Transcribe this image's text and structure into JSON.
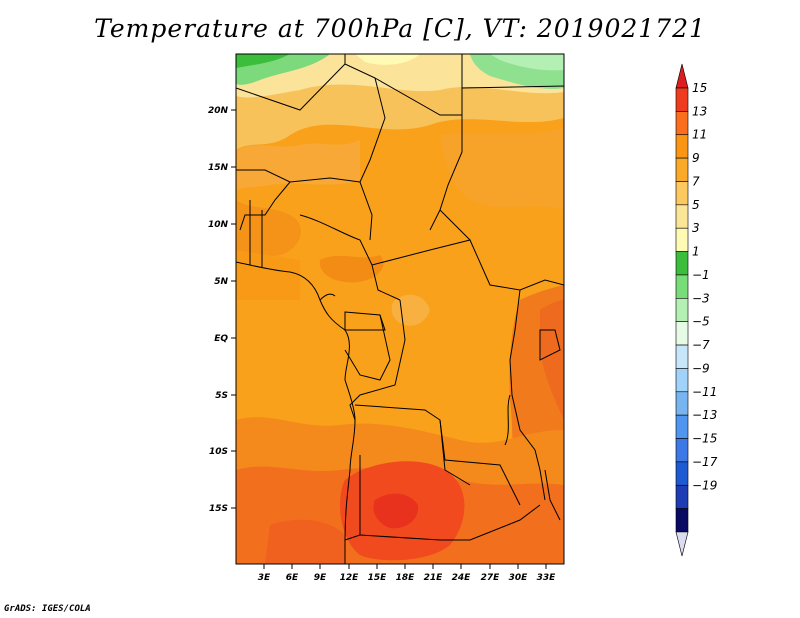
{
  "title": "Temperature at 700hPa [C], VT: 2019021721",
  "credit": "GrADS: IGES/COLA",
  "map": {
    "lat_labels": [
      "20N",
      "15N",
      "10N",
      "5N",
      "EQ",
      "5S",
      "10S",
      "15S"
    ],
    "lon_labels": [
      "3E",
      "6E",
      "9E",
      "12E",
      "15E",
      "18E",
      "21E",
      "24E",
      "27E",
      "30E",
      "33E"
    ]
  },
  "colorbar": {
    "labels": [
      "15",
      "13",
      "11",
      "9",
      "7",
      "5",
      "3",
      "1",
      "−1",
      "−3",
      "−5",
      "−7",
      "−9",
      "−11",
      "−13",
      "−15",
      "−17",
      "−19"
    ],
    "colors": [
      "#dc1e1e",
      "#f03c1e",
      "#fa6e1e",
      "#fa9614",
      "#faaa28",
      "#fcc860",
      "#fae696",
      "#fffab4",
      "#3cbe3c",
      "#78dc78",
      "#b4f0b4",
      "#e6fae6",
      "#c8e6fa",
      "#a0d2fa",
      "#78b4f0",
      "#5096f0",
      "#3c78e6",
      "#1e5ad2",
      "#1e3cb4",
      "#0a0a64",
      "#dcdcf0"
    ]
  }
}
